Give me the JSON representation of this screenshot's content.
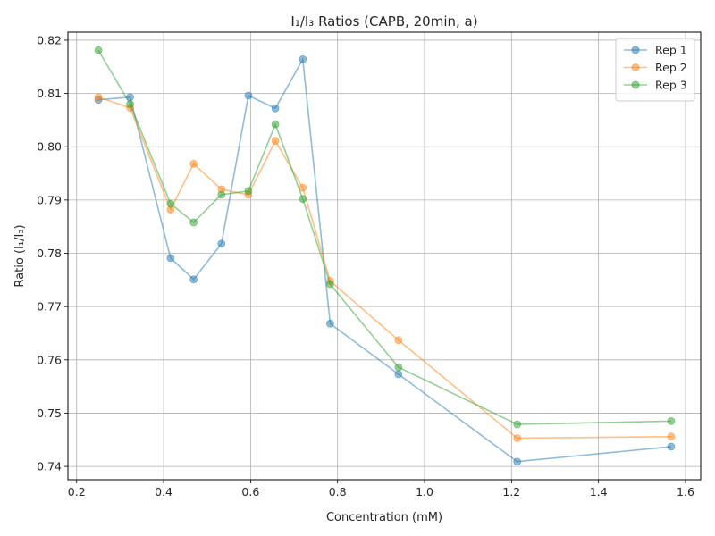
{
  "chart_data": {
    "type": "line",
    "title": "I₁/I₃ Ratios (CAPB, 20min, a)",
    "xlabel": "Concentration (mM)",
    "ylabel": "Ratio (I₁/I₃)",
    "xlim": [
      0.18,
      1.635
    ],
    "ylim": [
      0.7375,
      0.8215
    ],
    "xticks": [
      0.2,
      0.4,
      0.6,
      0.8,
      1.0,
      1.2,
      1.4,
      1.6
    ],
    "xtick_labels": [
      "0.2",
      "0.4",
      "0.6",
      "0.8",
      "1.0",
      "1.2",
      "1.4",
      "1.6"
    ],
    "yticks": [
      0.74,
      0.75,
      0.76,
      0.77,
      0.78,
      0.79,
      0.8,
      0.81,
      0.82
    ],
    "ytick_labels": [
      "0.74",
      "0.75",
      "0.76",
      "0.77",
      "0.78",
      "0.79",
      "0.80",
      "0.81",
      "0.82"
    ],
    "grid": true,
    "legend_position": "top-right",
    "x": [
      0.25,
      0.323,
      0.416,
      0.469,
      0.533,
      0.595,
      0.657,
      0.72,
      0.783,
      0.94,
      1.213,
      1.567
    ],
    "series": [
      {
        "name": "Rep 1",
        "color": "#1f77b4",
        "values": [
          0.8088,
          0.8093,
          0.7791,
          0.7751,
          0.7818,
          0.8096,
          0.8072,
          0.8164,
          0.7668,
          0.7573,
          0.7409,
          0.7437
        ]
      },
      {
        "name": "Rep 2",
        "color": "#ff7f0e",
        "values": [
          0.8093,
          0.8073,
          0.7882,
          0.7968,
          0.792,
          0.791,
          0.8011,
          0.7923,
          0.7748,
          0.7637,
          0.7453,
          0.7456
        ]
      },
      {
        "name": "Rep 3",
        "color": "#2ca02c",
        "values": [
          0.8181,
          0.808,
          0.7893,
          0.7858,
          0.791,
          0.7917,
          0.8042,
          0.7902,
          0.7742,
          0.7586,
          0.7479,
          0.7485
        ]
      }
    ]
  }
}
